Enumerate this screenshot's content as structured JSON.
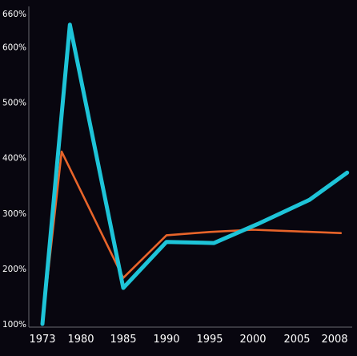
{
  "chart_data": {
    "type": "line",
    "title": "",
    "xlabel": "",
    "ylabel": "",
    "x": [
      1973,
      1977,
      1979,
      1985,
      1990,
      1996,
      2000,
      2005,
      2008
    ],
    "xticks": [
      "1973",
      "1980",
      "1985",
      "1990",
      "1995",
      "2000",
      "2005",
      "2008"
    ],
    "xlim": [
      1973,
      2008
    ],
    "yticks": [
      "100%",
      "200%",
      "300%",
      "400%",
      "500%",
      "600%",
      "660%"
    ],
    "ylim": [
      100,
      660
    ],
    "grid": false,
    "legend": "none",
    "series": [
      {
        "color": "#e8642a",
        "style": "thin",
        "points": [
          [
            1973,
            100
          ],
          [
            1976.5,
            411
          ],
          [
            1985,
            183
          ],
          [
            1990,
            260
          ],
          [
            1995,
            266
          ],
          [
            2000,
            270
          ],
          [
            2005,
            267
          ],
          [
            2008.5,
            264
          ]
        ]
      },
      {
        "color": "#1ec4d8",
        "style": "thick",
        "points": [
          [
            1973,
            100
          ],
          [
            1978,
            640
          ],
          [
            1985,
            165
          ],
          [
            1990,
            248
          ],
          [
            1995.5,
            246
          ],
          [
            2000.5,
            280
          ],
          [
            2006,
            324
          ],
          [
            2009,
            373
          ]
        ]
      }
    ]
  }
}
